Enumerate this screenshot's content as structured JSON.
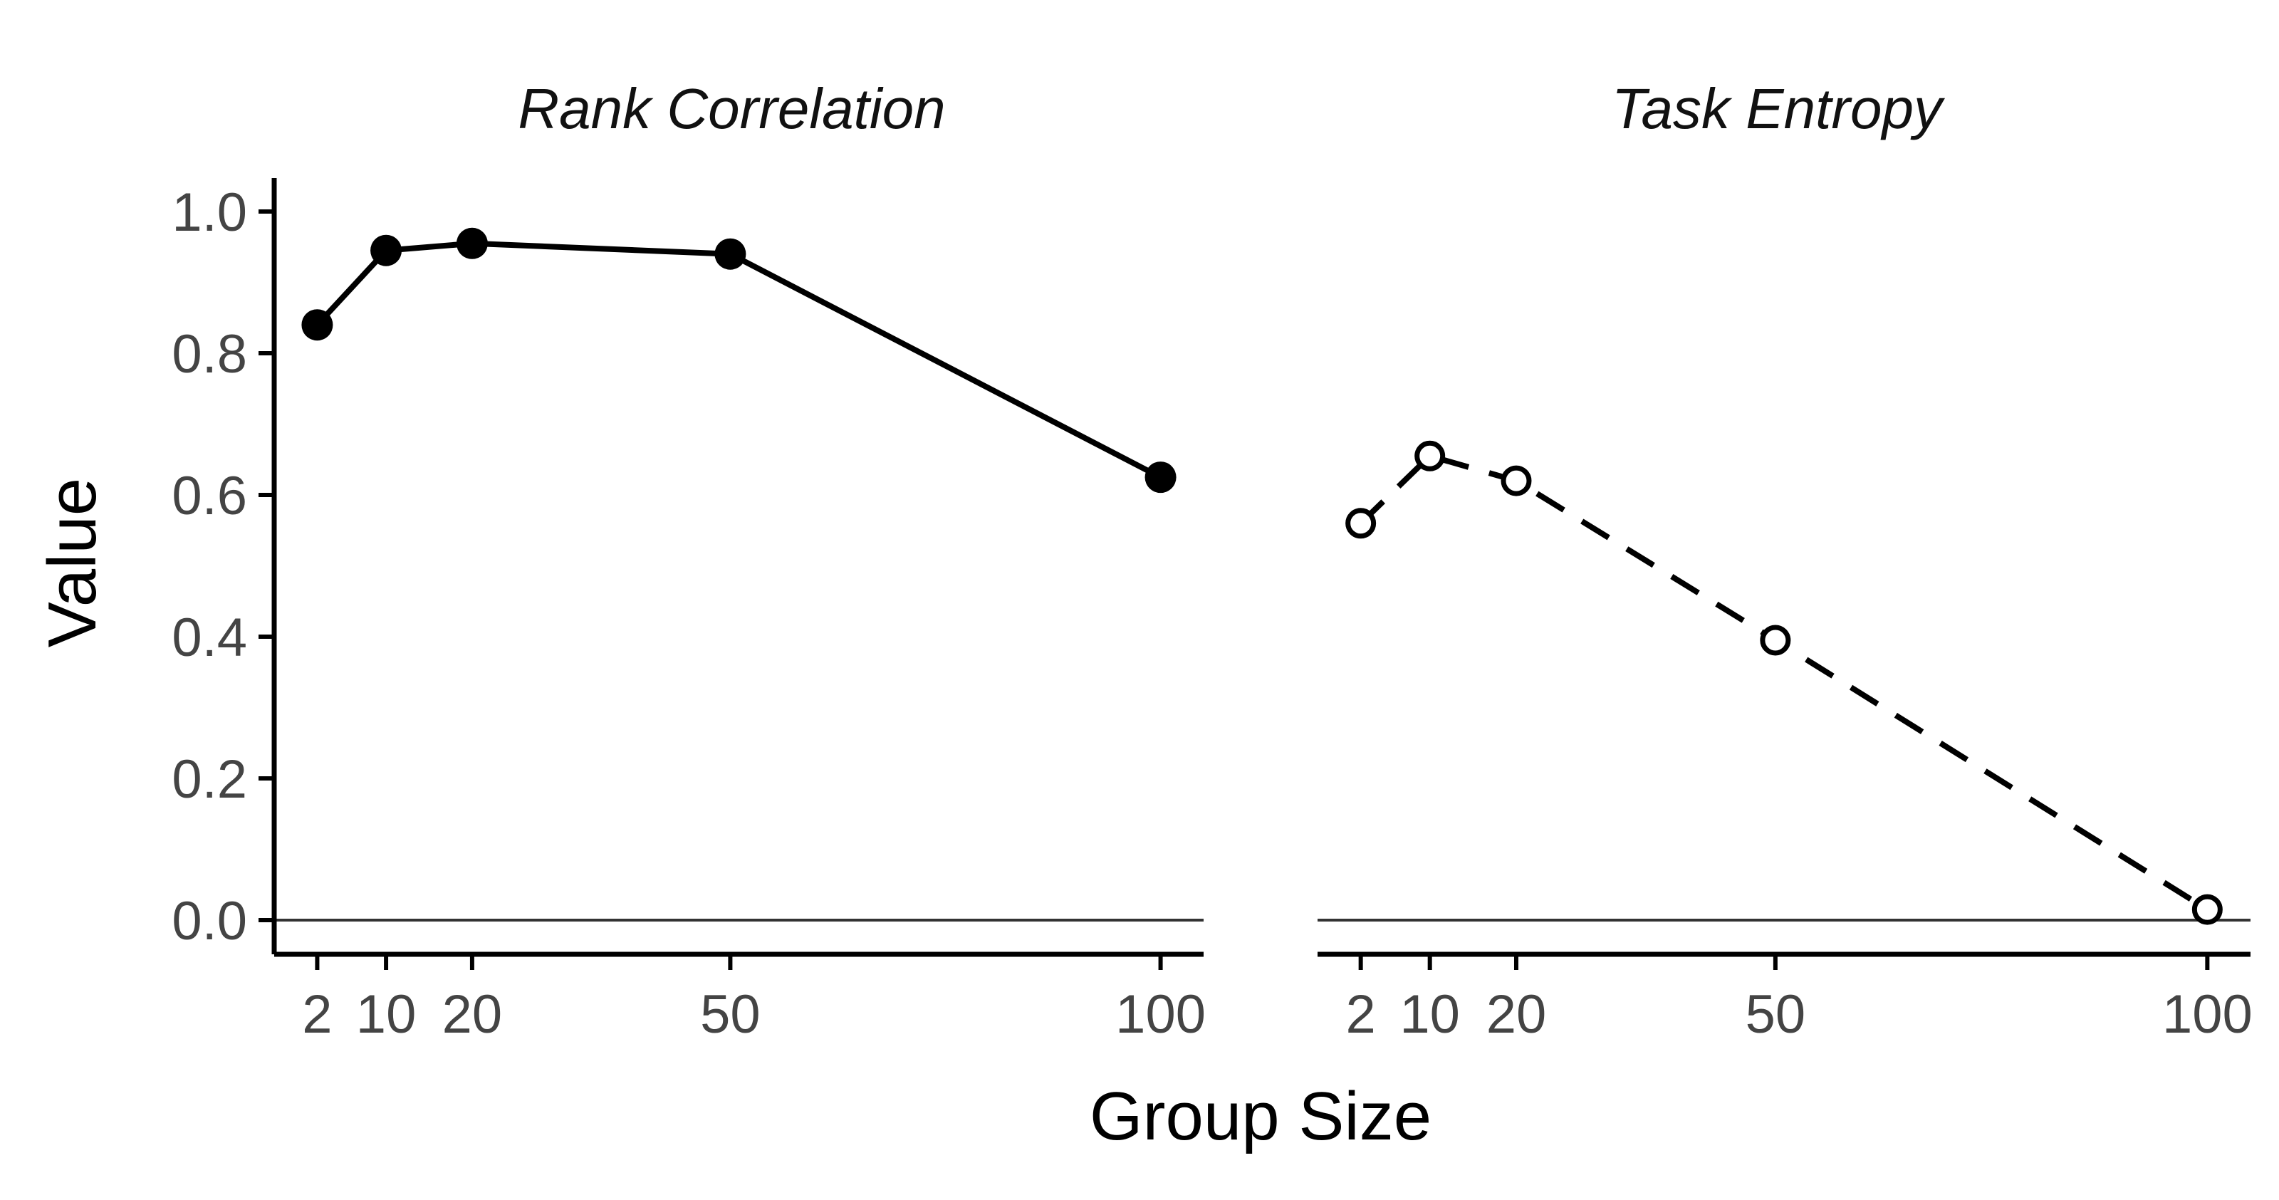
{
  "chart_data": {
    "type": "line",
    "xlabel": "Group Size",
    "ylabel": "Value",
    "x_ticks": [
      2,
      10,
      20,
      50,
      100
    ],
    "y_ticks": [
      "0.0",
      "0.2",
      "0.4",
      "0.6",
      "0.8",
      "1.0"
    ],
    "xlim": [
      -3,
      105
    ],
    "ylim": [
      -0.05,
      1.05
    ],
    "grid": false,
    "reference_line_y": 0,
    "facets": [
      {
        "title": "Rank Correlation",
        "line_style": "solid",
        "marker": "filled-circle",
        "color": "#000000",
        "x": [
          2,
          10,
          20,
          50,
          100
        ],
        "y": [
          0.84,
          0.945,
          0.955,
          0.94,
          0.625
        ]
      },
      {
        "title": "Task Entropy",
        "line_style": "dashed",
        "marker": "open-circle",
        "color": "#000000",
        "x": [
          2,
          10,
          20,
          50,
          100
        ],
        "y": [
          0.56,
          0.655,
          0.62,
          0.395,
          0.015
        ]
      }
    ]
  }
}
